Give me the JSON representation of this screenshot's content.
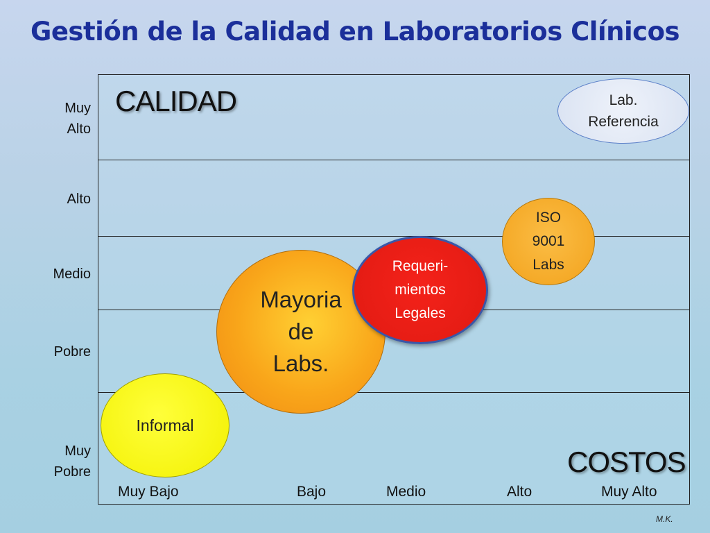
{
  "title": "Gestión de la Calidad en Laboratorios Clínicos",
  "axis": {
    "y_title": "CALIDAD",
    "x_title": "COSTOS",
    "y_labels": [
      "Muy\nAlto",
      "Alto",
      "Medio",
      "Pobre",
      "Muy\nPobre"
    ],
    "x_labels": [
      "Muy Bajo",
      "Bajo",
      "Medio",
      "Alto",
      "Muy Alto"
    ]
  },
  "bubbles": {
    "informal": "Informal",
    "mayoria": "Mayoria\nde\nLabs.",
    "legales": "Requeri-\nmientos\nLegales",
    "iso": "ISO\n9001\nLabs",
    "referencia": "Lab.\nReferencia"
  },
  "author": "M.K.",
  "colors": {
    "title": "#1b2f9a",
    "informal": "#f2f000",
    "mayoria": "#f9a61a",
    "legales": "#e01a12",
    "iso": "#f2a21c",
    "referencia": "#dfe6f4"
  }
}
